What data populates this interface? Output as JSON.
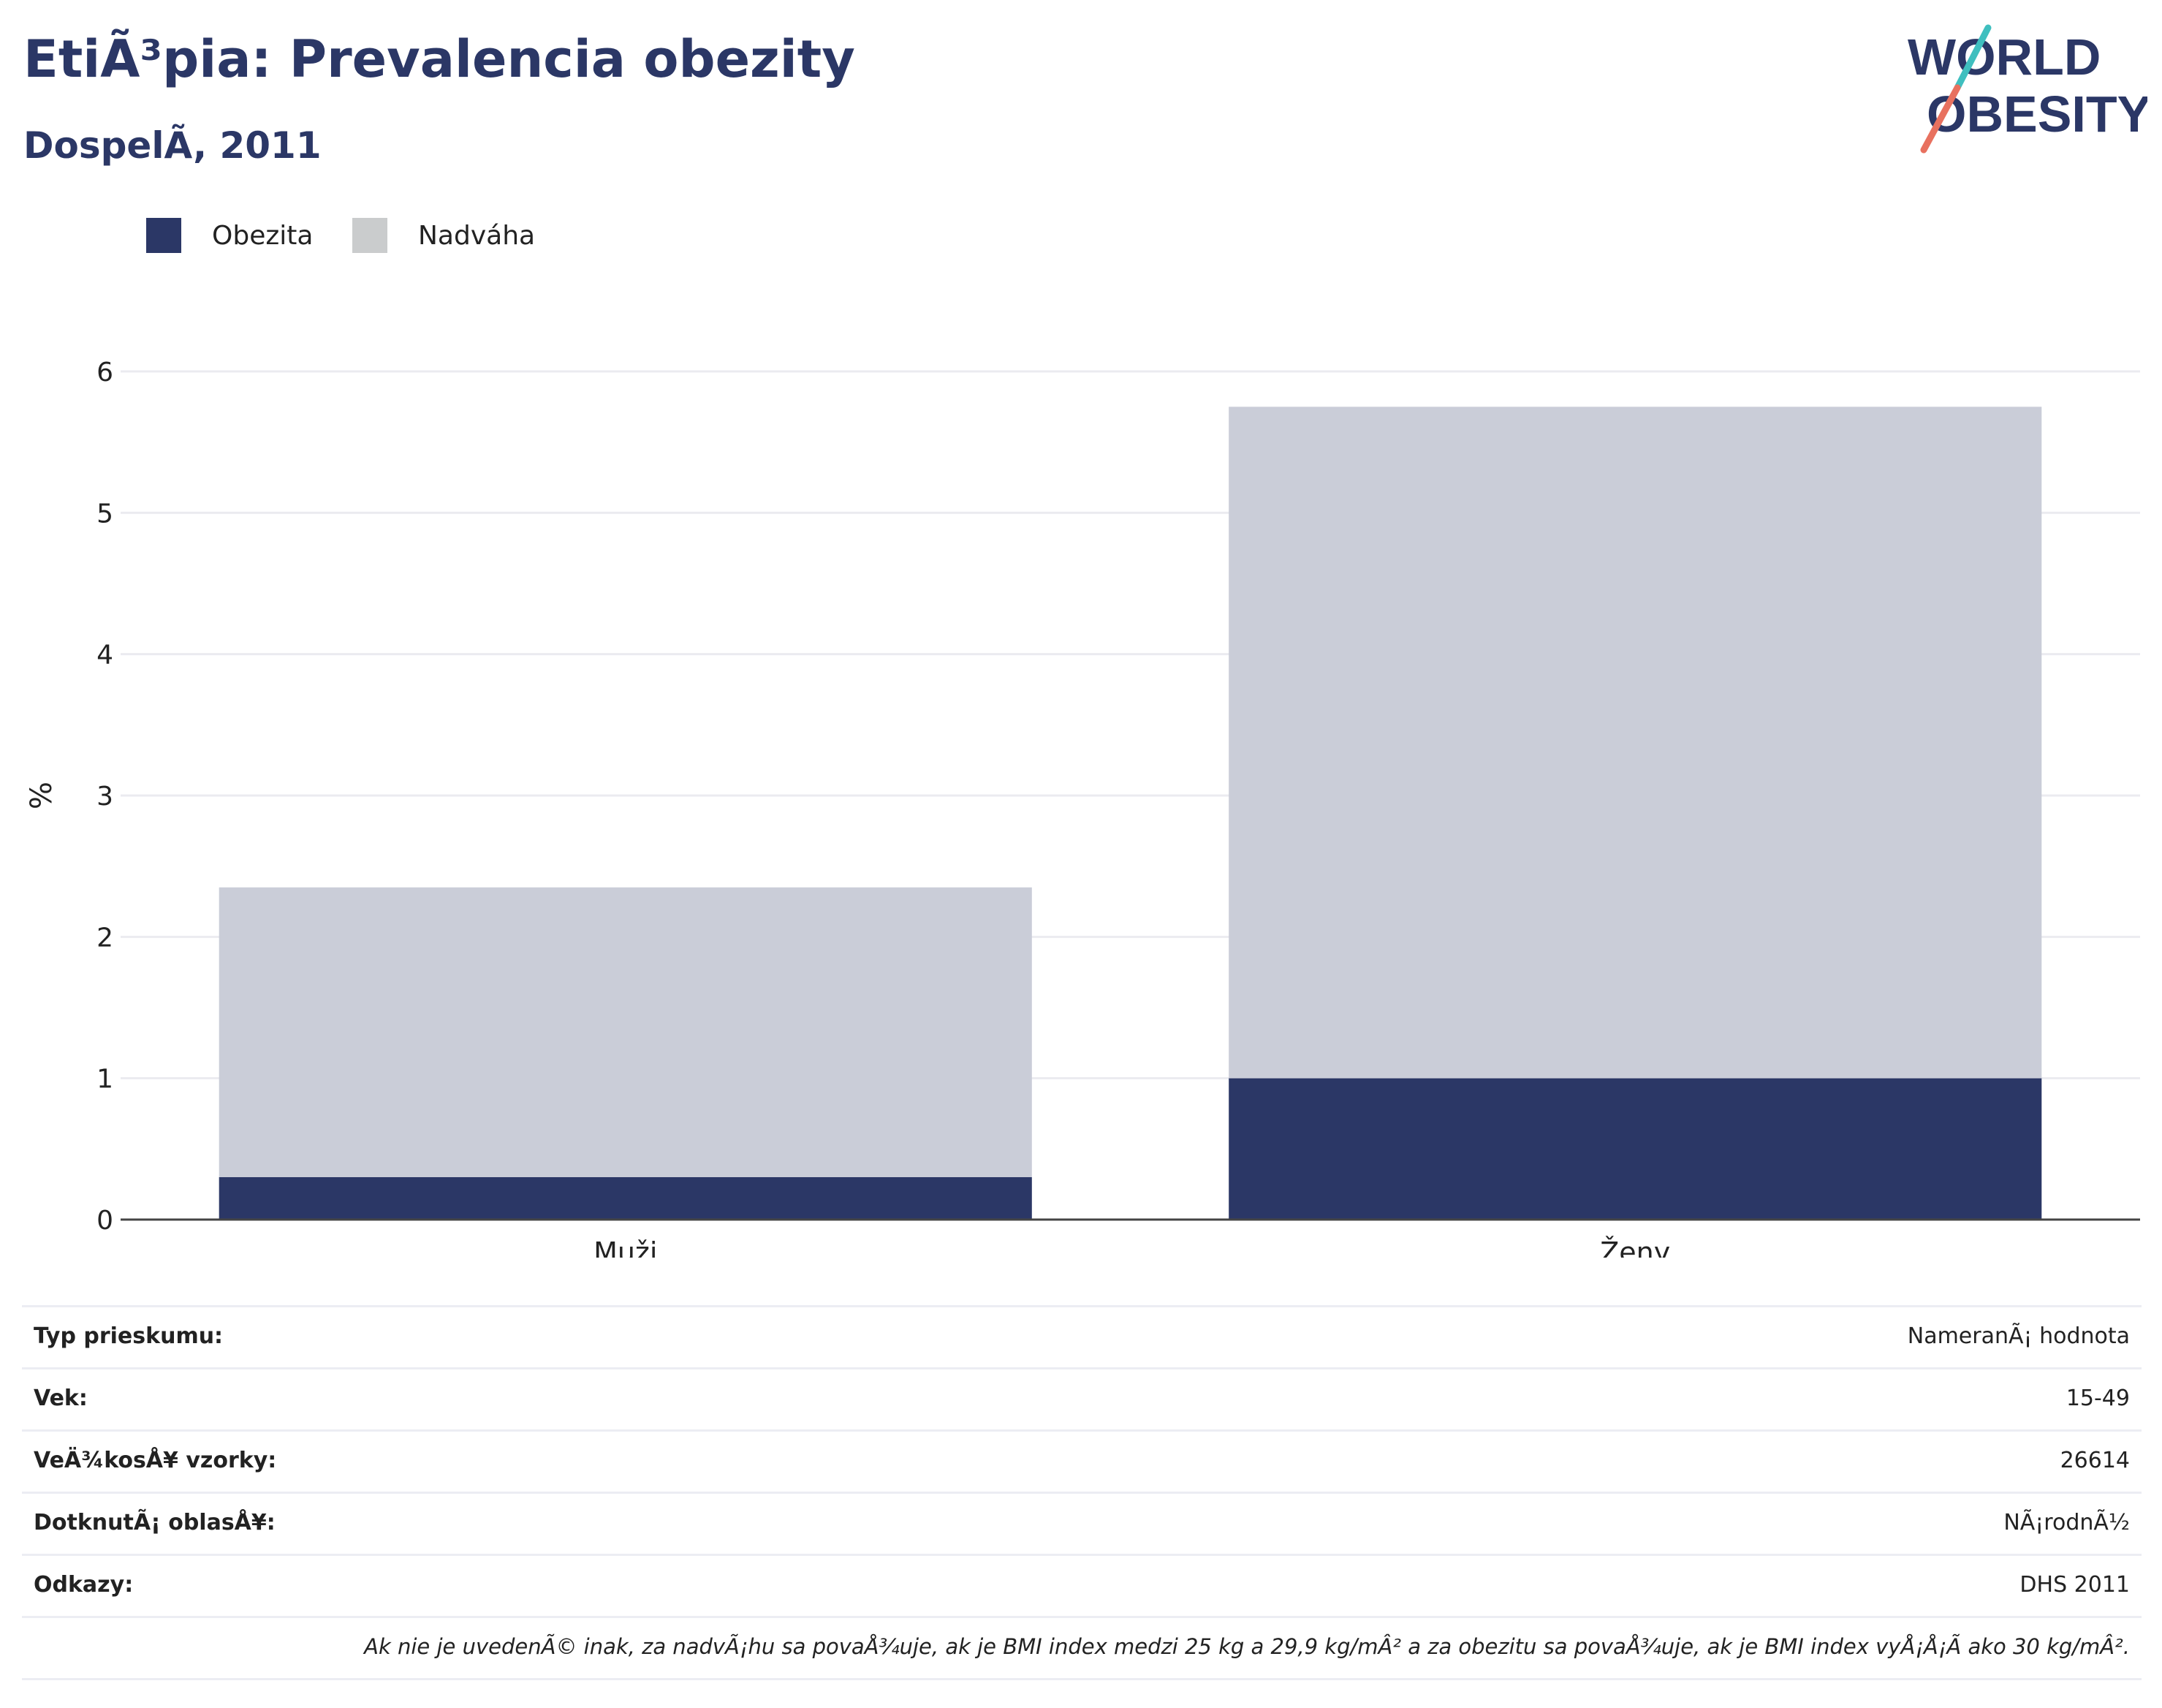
{
  "header": {
    "title": "EtiÃ³pia: Prevalencia obezity",
    "subtitle": "DospelÃ, 2011"
  },
  "logo": {
    "line1": "WORLD",
    "line2": "OBESITY",
    "colors": {
      "text": "#2b3766",
      "teal": "#3fbfbf",
      "coral": "#e8715f"
    }
  },
  "legend": [
    {
      "label": "Obezita",
      "color": "#2b3766"
    },
    {
      "label": "Nadváha",
      "color": "#cacccd"
    }
  ],
  "chart_data": {
    "type": "bar",
    "stacked": true,
    "categories": [
      "Muži",
      "Ženy"
    ],
    "series": [
      {
        "name": "Obezita",
        "color": "#2b3766",
        "values": [
          0.3,
          1.0
        ]
      },
      {
        "name": "Nadváha",
        "color": "#cacdd8",
        "values": [
          2.05,
          4.75
        ]
      }
    ],
    "ylabel": "%",
    "ylim": [
      0,
      6
    ],
    "yticks": [
      0,
      1,
      2,
      3,
      4,
      5,
      6
    ],
    "grid": true,
    "legend_position": "top-left"
  },
  "info_table": [
    {
      "label": "Typ prieskumu:",
      "value": "NameranÃ¡ hodnota"
    },
    {
      "label": "Vek:",
      "value": "15-49"
    },
    {
      "label": "VeÄ¾kosÅ¥ vzorky:",
      "value": "26614"
    },
    {
      "label": "DotknutÃ¡ oblasÅ¥:",
      "value": "NÃ¡rodnÃ½"
    },
    {
      "label": "Odkazy:",
      "value": "DHS 2011"
    }
  ],
  "footnote": "Ak nie je uvedenÃ© inak, za nadvÃ¡hu sa povaÅ¾uje, ak je BMI index medzi 25 kg a 29,9 kg/mÂ² a za obezitu sa povaÅ¾uje, ak je BMI index vyÅ¡Å¡Ã ako 30 kg/mÂ²."
}
